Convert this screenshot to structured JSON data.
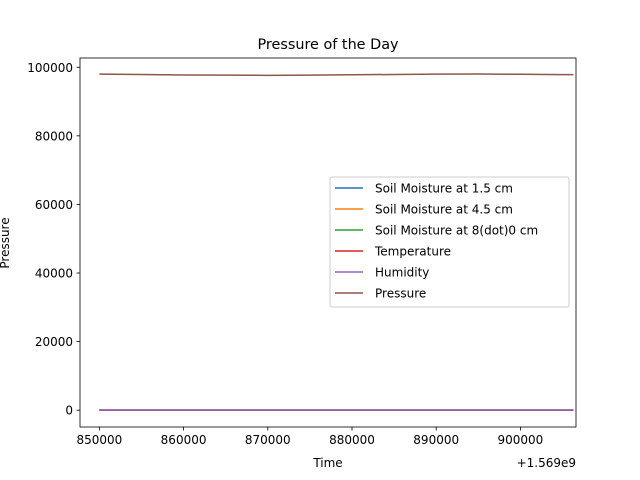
{
  "chart_data": {
    "type": "line",
    "title": "Pressure of the Day",
    "xlabel": "Time",
    "ylabel": "Pressure",
    "x_offset_label": "+1.569e9",
    "xlim": [
      847700,
      906600
    ],
    "ylim": [
      -4900,
      102700
    ],
    "x_ticks": [
      850000,
      860000,
      870000,
      880000,
      890000,
      900000
    ],
    "x_tick_labels": [
      "850000",
      "860000",
      "870000",
      "880000",
      "890000",
      "900000"
    ],
    "y_ticks": [
      0,
      20000,
      40000,
      60000,
      80000,
      100000
    ],
    "y_tick_labels": [
      "0",
      "20000",
      "40000",
      "60000",
      "80000",
      "100000"
    ],
    "grid": false,
    "legend_position": "center-right",
    "x": [
      850000,
      855000,
      860000,
      865000,
      870000,
      875000,
      880000,
      885000,
      890000,
      895000,
      900000,
      905000,
      906300
    ],
    "series": [
      {
        "name": "Soil Moisture at 1.5 cm",
        "color": "#1f77b4",
        "values": [
          30,
          30,
          30,
          30,
          30,
          30,
          30,
          30,
          30,
          30,
          30,
          30,
          30
        ]
      },
      {
        "name": "Soil Moisture at 4.5 cm",
        "color": "#ff7f0e",
        "values": [
          28,
          28,
          28,
          28,
          28,
          28,
          28,
          28,
          28,
          28,
          28,
          28,
          28
        ]
      },
      {
        "name": "Soil Moisture at 8(dot)0 cm",
        "color": "#2ca02c",
        "values": [
          25,
          25,
          25,
          25,
          25,
          25,
          25,
          25,
          25,
          25,
          25,
          25,
          25
        ]
      },
      {
        "name": "Temperature",
        "color": "#d62728",
        "values": [
          22,
          21,
          20,
          19,
          18,
          19,
          21,
          23,
          25,
          24,
          23,
          22,
          22
        ]
      },
      {
        "name": "Humidity",
        "color": "#9467bd",
        "values": [
          60,
          62,
          65,
          68,
          70,
          68,
          64,
          60,
          55,
          56,
          58,
          60,
          60
        ]
      },
      {
        "name": "Pressure",
        "color": "#8c564b",
        "values": [
          98000,
          97900,
          97750,
          97700,
          97650,
          97700,
          97800,
          97900,
          98000,
          98050,
          97950,
          97850,
          97850
        ]
      }
    ]
  }
}
